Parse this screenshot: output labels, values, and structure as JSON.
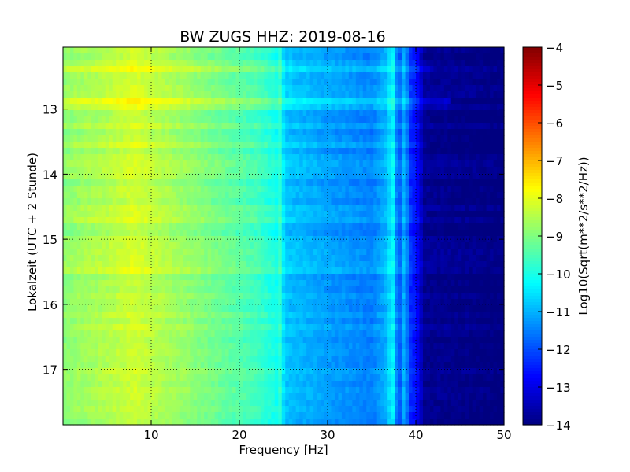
{
  "chart_data": {
    "type": "heatmap",
    "title": "BW ZUGS HHZ: 2019-08-16",
    "xlabel": "Frequency [Hz]",
    "ylabel": "Lokalzeit (UTC + 2 Stunde)",
    "xlim": [
      0,
      50
    ],
    "ylim": [
      17.85,
      12.05
    ],
    "y_inverted": true,
    "x_ticks": [
      10,
      20,
      30,
      40,
      50
    ],
    "y_ticks": [
      13,
      14,
      15,
      16,
      17
    ],
    "grid": true,
    "colormap": "jet",
    "colorbar": {
      "label": "Log10(Sqrt(m**2/s**2/Hz))",
      "range": [
        -14,
        -4
      ],
      "ticks": [
        -4,
        -5,
        -6,
        -7,
        -8,
        -9,
        -10,
        -11,
        -12,
        -13,
        -14
      ]
    },
    "frequency_profile": {
      "frequency_hz": [
        0,
        2,
        5,
        8,
        10,
        15,
        20,
        22,
        24,
        25,
        30,
        35,
        37,
        38,
        40,
        41,
        50
      ],
      "level": [
        -8.9,
        -8.7,
        -8.5,
        -8.2,
        -8.4,
        -8.9,
        -9.4,
        -9.6,
        -10.0,
        -10.8,
        -11.2,
        -11.5,
        -10.9,
        -11.8,
        -12.6,
        -13.8,
        -14.0
      ]
    },
    "spectral_lines_hz": [
      {
        "frequency_hz": 22.3,
        "level": -9.9
      },
      {
        "frequency_hz": 24.6,
        "level": -9.8
      },
      {
        "frequency_hz": 37.3,
        "level": -10.3
      },
      {
        "frequency_hz": 38.7,
        "level": -11.0
      }
    ],
    "time_bands_hour": [
      {
        "time": 12.9,
        "level_offset": 1.1,
        "up_to_hz": 44
      },
      {
        "time": 12.35,
        "level_offset": 0.6,
        "up_to_hz": 42
      },
      {
        "time": 14.65,
        "level_offset": 0.5,
        "up_to_hz": 41
      },
      {
        "time": 13.55,
        "level_offset": 0.4,
        "up_to_hz": 41
      },
      {
        "time": 15.45,
        "level_offset": 0.3,
        "up_to_hz": 40
      }
    ],
    "colors": {
      "background": "#ffffff",
      "axes": "#000000"
    }
  }
}
